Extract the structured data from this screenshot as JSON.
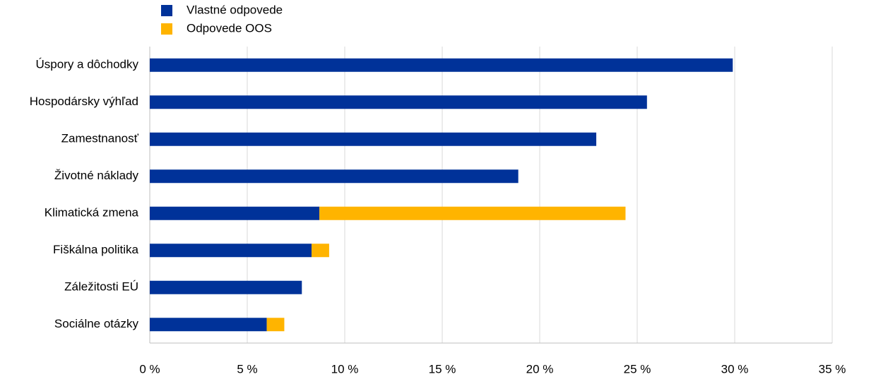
{
  "chart_data": {
    "type": "stacked-bar-horizontal",
    "categories": [
      "Úspory a dôchodky",
      "Hospodársky výhľad",
      "Zamestnanosť",
      "Životné náklady",
      "Klimatická zmena",
      "Fiškálna politika",
      "Záležitosti EÚ",
      "Sociálne otázky"
    ],
    "series": [
      {
        "name": "Vlastné odpovede",
        "color": "#003299",
        "values": [
          29.9,
          25.5,
          22.9,
          18.9,
          8.7,
          8.3,
          7.8,
          6.0
        ]
      },
      {
        "name": "Odpovede OOS",
        "color": "#ffb400",
        "values": [
          null,
          null,
          null,
          null,
          15.7,
          0.9,
          null,
          0.9
        ]
      }
    ],
    "xlim": [
      0,
      35
    ],
    "xticks": [
      {
        "value": 0,
        "label": "0 %"
      },
      {
        "value": 5,
        "label": "5 %"
      },
      {
        "value": 10,
        "label": "10 %"
      },
      {
        "value": 15,
        "label": "15 %"
      },
      {
        "value": 20,
        "label": "20 %"
      },
      {
        "value": 25,
        "label": "25 %"
      },
      {
        "value": 30,
        "label": "30 %"
      },
      {
        "value": 35,
        "label": "35 %"
      }
    ],
    "grid": true,
    "legend": "top-left"
  }
}
